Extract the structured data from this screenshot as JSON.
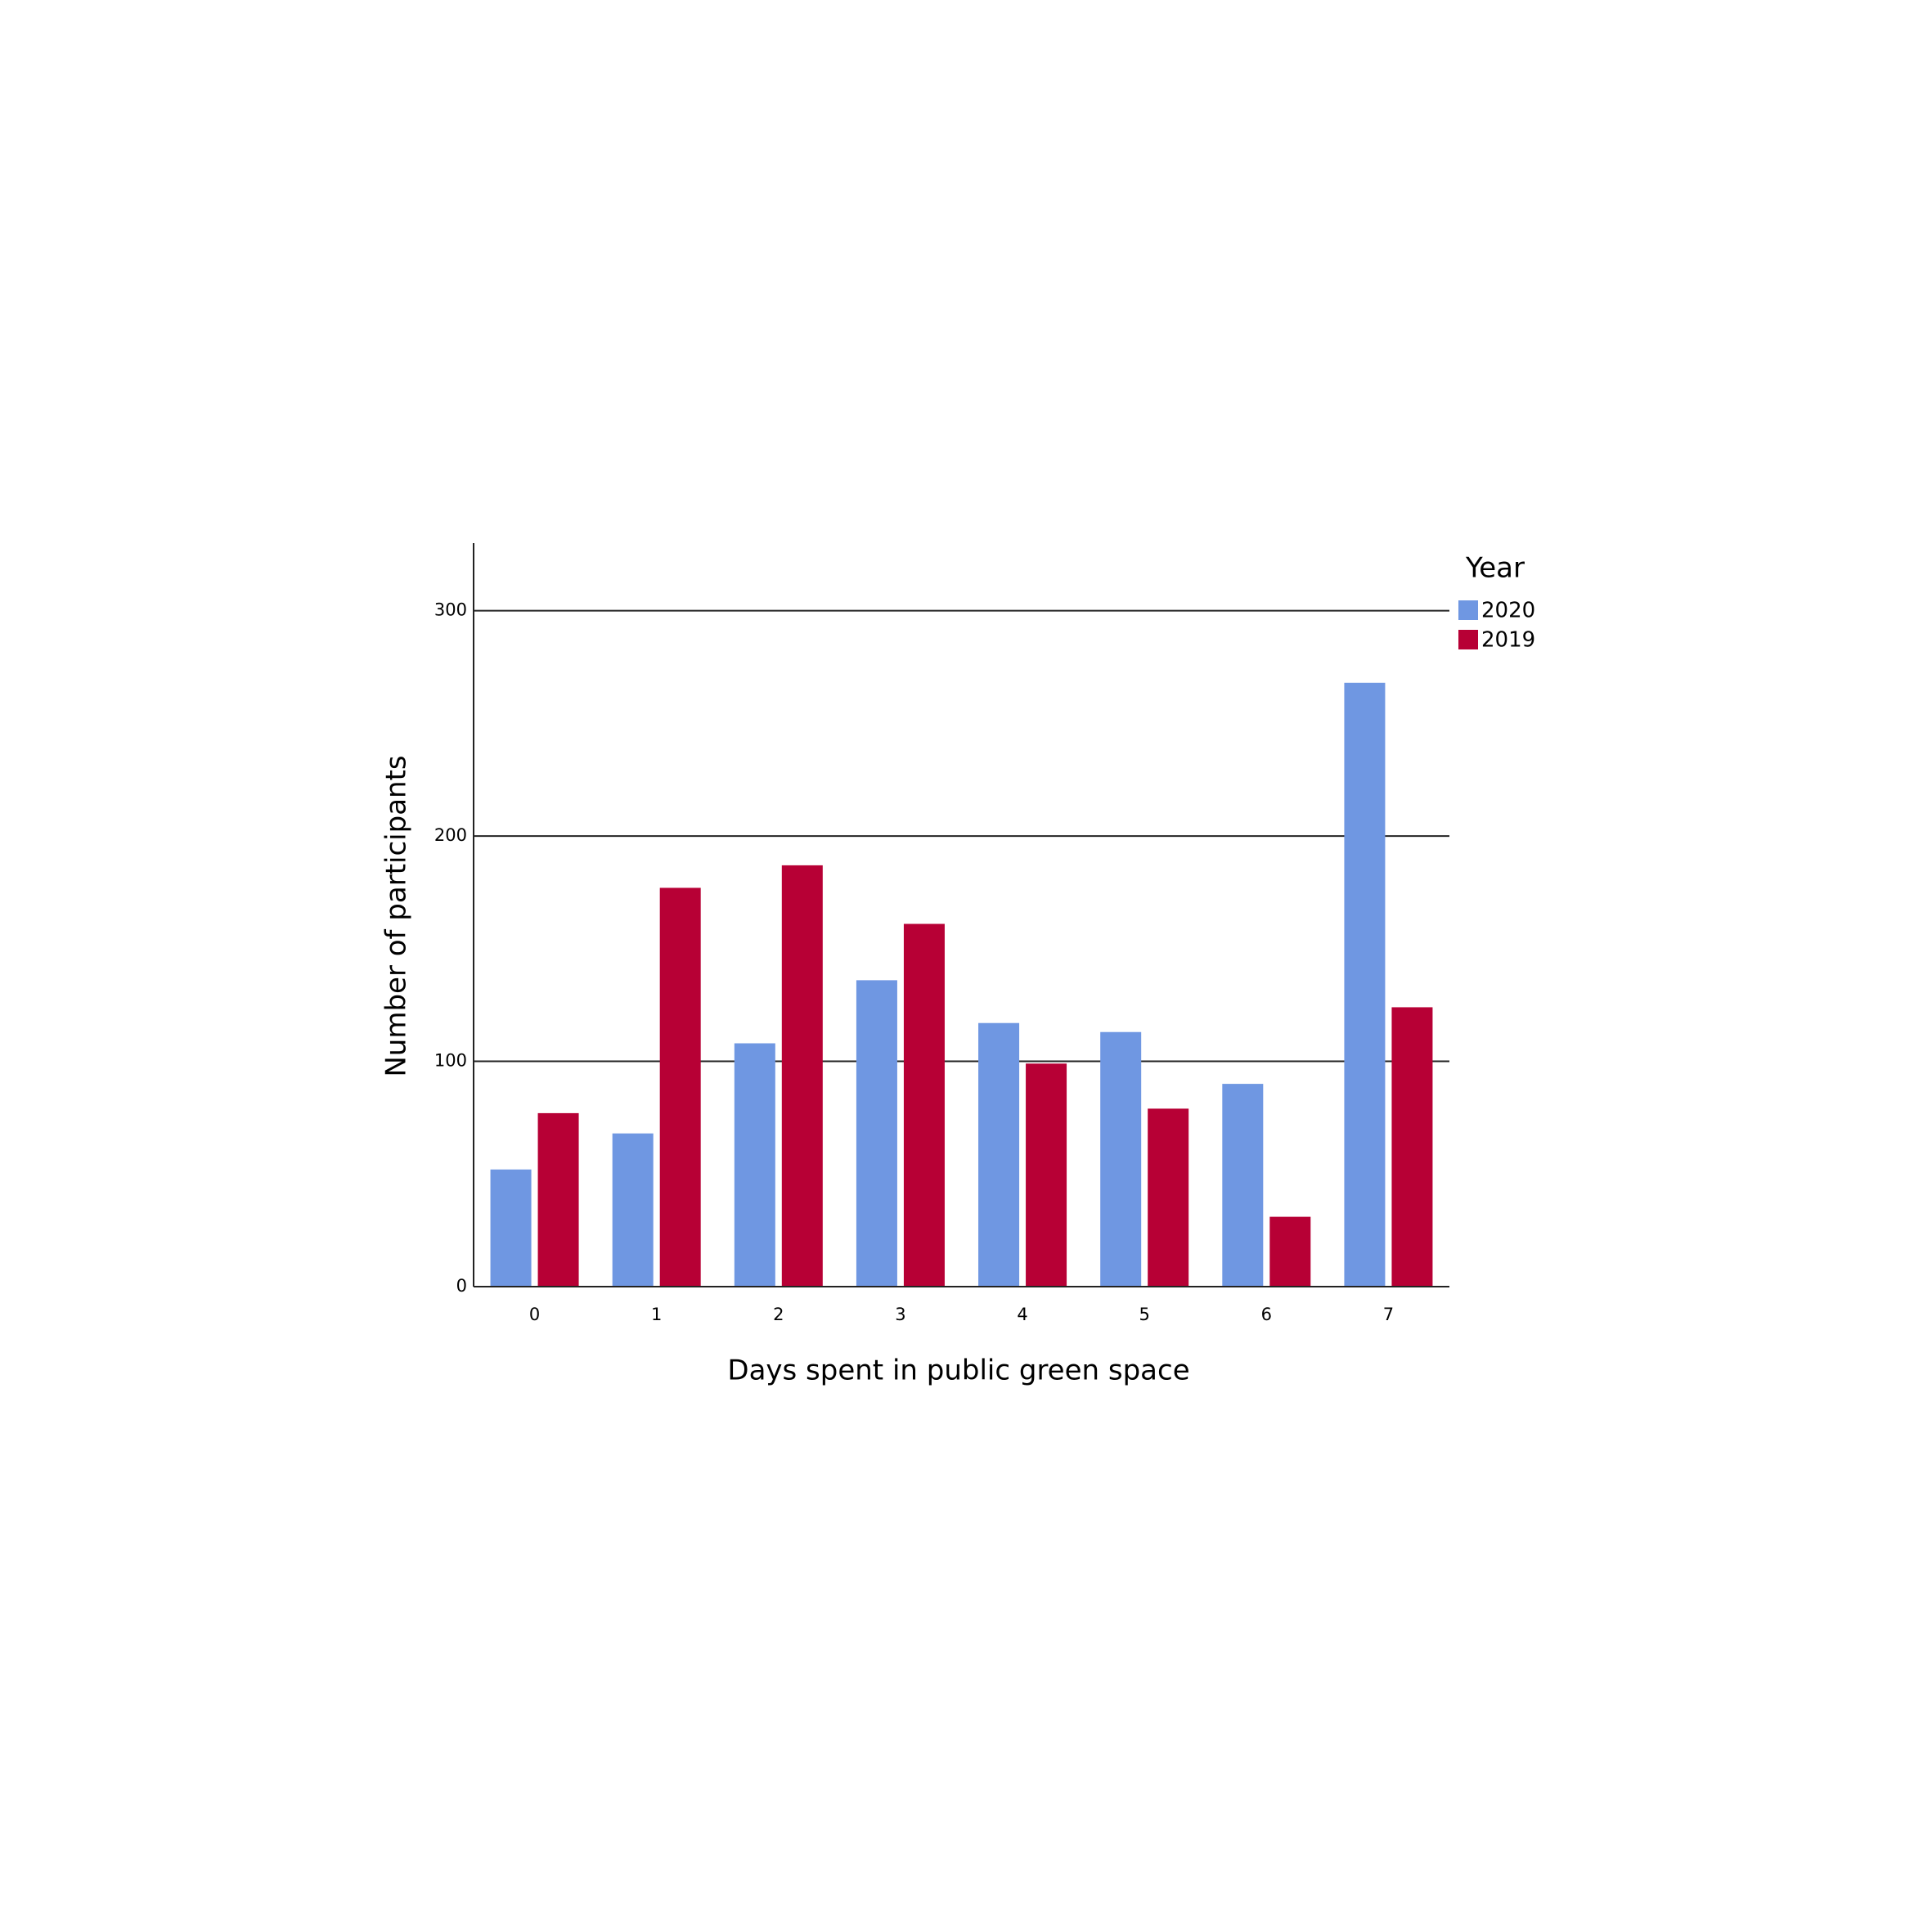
{
  "chart_data": {
    "type": "bar",
    "x_label": "Days spent in public green space",
    "y_label": "Number of participants",
    "legend_title": "Year",
    "legend_position": "upper right outside",
    "categories": [
      "0",
      "1",
      "2",
      "3",
      "4",
      "5",
      "6",
      "7"
    ],
    "series": [
      {
        "name": "2020",
        "color": "#6f97e2",
        "values": [
          52,
          68,
          108,
          136,
          117,
          113,
          90,
          268
        ]
      },
      {
        "name": "2019",
        "color": "#b70035",
        "values": [
          77,
          177,
          187,
          161,
          99,
          79,
          31,
          124
        ]
      }
    ],
    "ylim": [
      0,
      330
    ],
    "yticks": [
      0,
      100,
      200,
      300
    ],
    "grid": true
  }
}
